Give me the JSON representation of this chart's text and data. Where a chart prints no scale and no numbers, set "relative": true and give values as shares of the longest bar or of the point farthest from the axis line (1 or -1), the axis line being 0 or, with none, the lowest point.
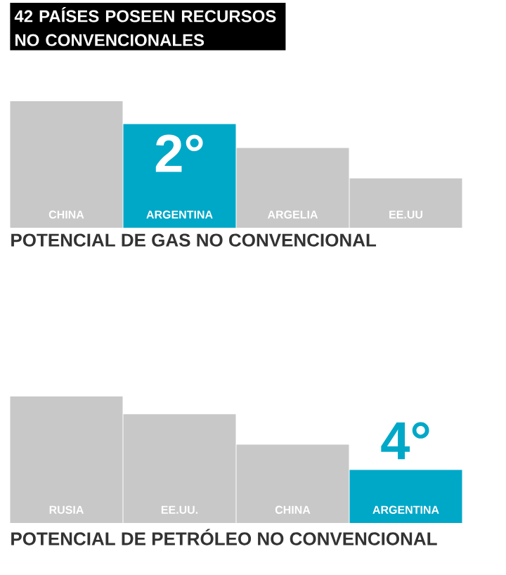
{
  "chart_data": [
    {
      "type": "bar",
      "title": "42 PAÍSES POSEEN RECURSOS NO CONVENCIONALES",
      "xlabel": "POTENCIAL DE GAS NO CONVENCIONAL",
      "categories": [
        "CHINA",
        "ARGENTINA",
        "ARGELIA",
        "EE.UU"
      ],
      "values": [
        1,
        0.82,
        0.63,
        0.39
      ],
      "colors": [
        "#c8c8c8",
        "#00a8c8",
        "#c8c8c8",
        "#c8c8c8"
      ],
      "relative": true,
      "annotations": [
        "2°"
      ]
    },
    {
      "type": "bar",
      "xlabel": "POTENCIAL DE PETRÓLEO NO CONVENCIONAL",
      "categories": [
        "RUSIA",
        "EE.UU.",
        "CHINA",
        "ARGENTINA"
      ],
      "values": [
        1,
        0.86,
        0.62,
        0.42
      ],
      "colors": [
        "#c8c8c8",
        "#c8c8c8",
        "#c8c8c8",
        "#00a8c8"
      ],
      "relative": true,
      "annotations": [
        "4°"
      ]
    }
  ]
}
